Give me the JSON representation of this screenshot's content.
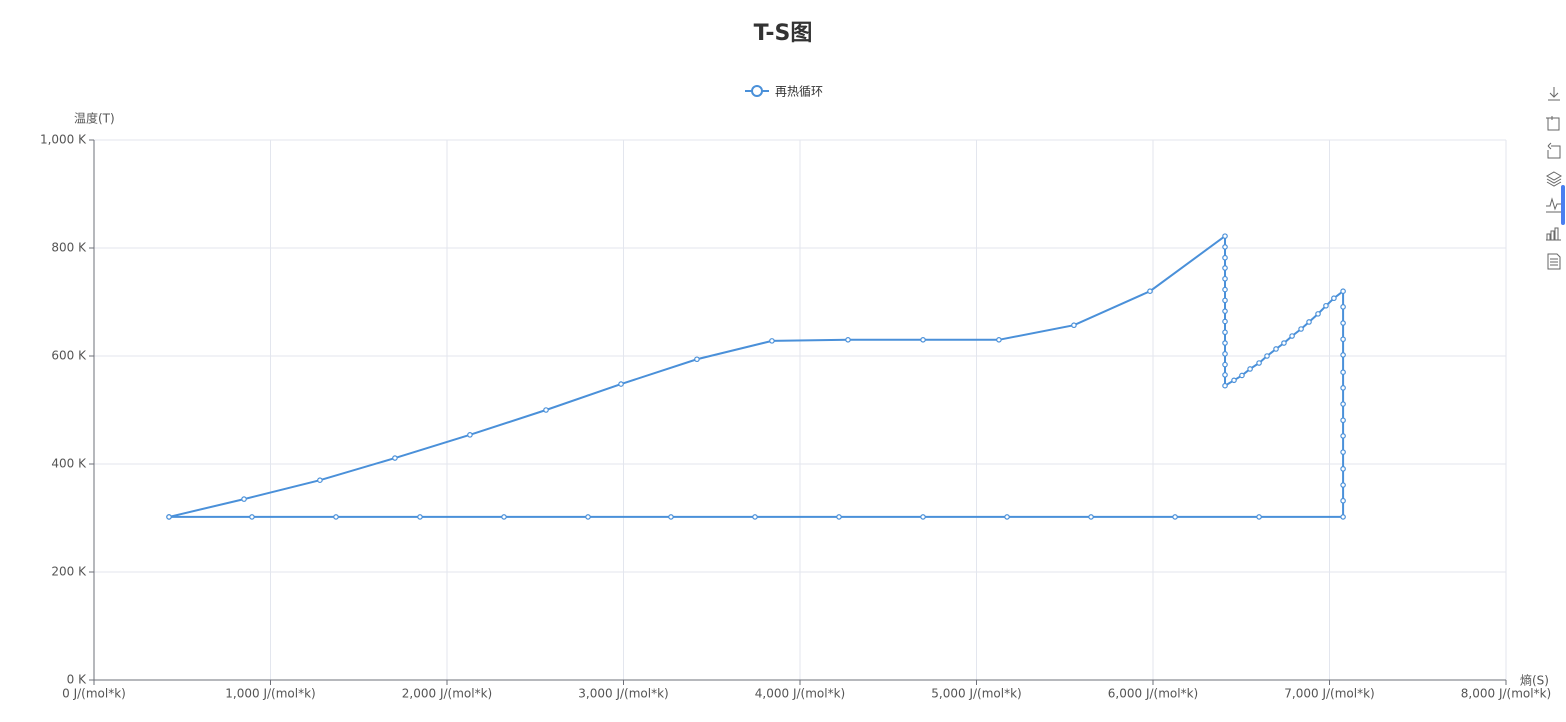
{
  "chart_data": {
    "type": "line",
    "title": "T-S图",
    "y_axis_label": "温度(T)",
    "x_axis_label": "熵(S)",
    "x": [
      425,
      850,
      1280,
      1705,
      2130,
      2561,
      2986,
      3416,
      3841,
      4272,
      4697,
      5127,
      5552,
      5983,
      6408,
      6408,
      6408,
      6408,
      6408,
      6408,
      6408,
      6408,
      6408,
      6408,
      6408,
      6408,
      6408,
      6408,
      6408,
      6459,
      6504,
      6550,
      6601,
      6646,
      6697,
      6742,
      6788,
      6839,
      6884,
      6935,
      6980,
      7025,
      7077,
      7077,
      7077,
      7077,
      7077,
      7077,
      7077,
      7077,
      7077,
      7077,
      7077,
      7077,
      7077,
      7077,
      7077,
      6601,
      6125,
      5649,
      5173,
      4697,
      4221,
      3745,
      3269,
      2799,
      2323,
      1847,
      1371,
      895,
      425
    ],
    "series": [
      {
        "name": "再热循环",
        "color": "#4a90d9",
        "values": [
          302,
          335,
          370,
          411,
          454,
          500,
          548,
          594,
          628,
          630,
          630,
          630,
          657,
          720,
          822,
          802,
          782,
          763,
          743,
          723,
          703,
          683,
          664,
          644,
          624,
          604,
          584,
          565,
          545,
          555,
          564,
          576,
          587,
          600,
          613,
          624,
          637,
          650,
          663,
          678,
          693,
          707,
          720,
          691,
          661,
          631,
          602,
          570,
          541,
          511,
          481,
          452,
          422,
          391,
          361,
          332,
          302,
          302,
          302,
          302,
          302,
          302,
          302,
          302,
          302,
          302,
          302,
          302,
          302,
          302,
          302
        ]
      }
    ],
    "xlim": [
      0,
      8000
    ],
    "xticks": [
      {
        "value": 0,
        "label": "0 J/(mol*k)"
      },
      {
        "value": 1000,
        "label": "1,000 J/(mol*k)"
      },
      {
        "value": 2000,
        "label": "2,000 J/(mol*k)"
      },
      {
        "value": 3000,
        "label": "3,000 J/(mol*k)"
      },
      {
        "value": 4000,
        "label": "4,000 J/(mol*k)"
      },
      {
        "value": 5000,
        "label": "5,000 J/(mol*k)"
      },
      {
        "value": 6000,
        "label": "6,000 J/(mol*k)"
      },
      {
        "value": 7000,
        "label": "7,000 J/(mol*k)"
      },
      {
        "value": 8000,
        "label": "8,000 J/(mol*k)"
      }
    ],
    "ylim": [
      0,
      1000
    ],
    "yticks": [
      {
        "value": 0,
        "label": "0 K"
      },
      {
        "value": 200,
        "label": "200 K"
      },
      {
        "value": 400,
        "label": "400 K"
      },
      {
        "value": 600,
        "label": "600 K"
      },
      {
        "value": 800,
        "label": "800 K"
      },
      {
        "value": 1000,
        "label": "1,000 K"
      }
    ],
    "grid": true
  }
}
